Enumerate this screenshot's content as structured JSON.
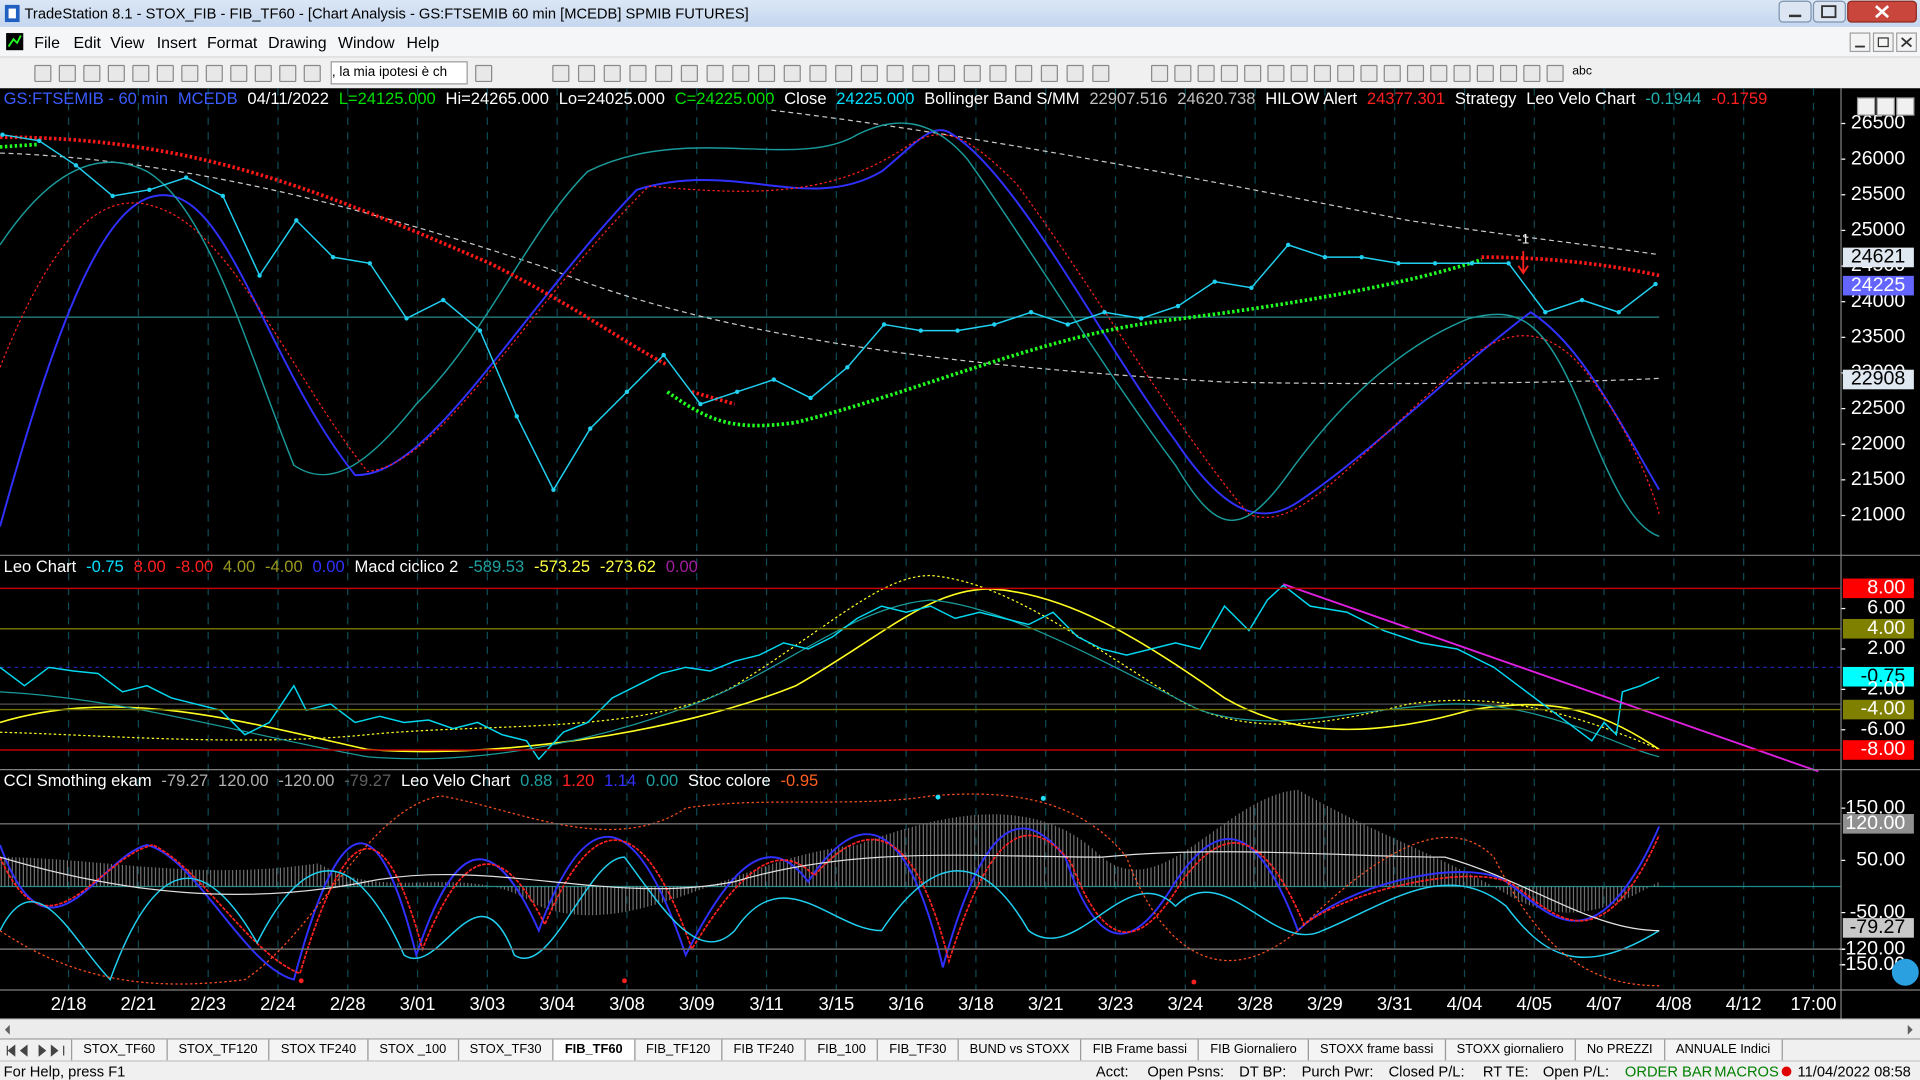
{
  "window": {
    "title": "TradeStation 8.1 - STOX_FIB - FIB_TF60 - [Chart Analysis - GS:FTSEMIB  60 min  [MCEDB] SPMIB FUTURES]"
  },
  "menu": [
    "File",
    "Edit",
    "View",
    "Insert",
    "Format",
    "Drawing",
    "Window",
    "Help"
  ],
  "toolbar": {
    "combo": ", la mia ipotesi è ch",
    "text_tool": "abc"
  },
  "price_panel": {
    "legend": [
      {
        "text": "GS:FTSEMIB - 60 min",
        "color": "#3a5cff"
      },
      {
        "text": "MCEDB",
        "color": "#3a5cff"
      },
      {
        "text": "04/11/2022",
        "color": "#ffffff"
      },
      {
        "text": "L=24125.000",
        "color": "#00e000"
      },
      {
        "text": "Hi=24265.000",
        "color": "#ffffff"
      },
      {
        "text": "Lo=24025.000",
        "color": "#ffffff"
      },
      {
        "text": "C=24225.000",
        "color": "#00e000"
      },
      {
        "text": "Close",
        "color": "#ffffff"
      },
      {
        "text": "24225.000",
        "color": "#00e0ff"
      },
      {
        "text": "Bollinger Band S/MM",
        "color": "#ffffff"
      },
      {
        "text": "22907.516",
        "color": "#c0c0c0"
      },
      {
        "text": "24620.738",
        "color": "#c0c0c0"
      },
      {
        "text": "HILOW Alert",
        "color": "#ffffff"
      },
      {
        "text": "24377.301",
        "color": "#ff2020"
      },
      {
        "text": "Strategy",
        "color": "#ffffff"
      },
      {
        "text": "Leo Velo Chart",
        "color": "#ffffff"
      },
      {
        "text": "-0.1944",
        "color": "#20b0b0"
      },
      {
        "text": "-0.1759",
        "color": "#ff2020"
      }
    ],
    "ylim": [
      20450,
      26996
    ],
    "yticks": [
      21000,
      21500,
      22000,
      22500,
      23000,
      23500,
      24000,
      24500,
      25000,
      25500,
      26000,
      26500
    ],
    "axis_labels": [
      {
        "value": 24621,
        "label": "24621",
        "bg": "#dfe8f0",
        "fg": "#000000"
      },
      {
        "value": 24225,
        "label": "24225",
        "bg": "#6464ff",
        "fg": "#ffffff"
      },
      {
        "value": 22908,
        "label": "22908",
        "bg": "#dfe8f0",
        "fg": "#000000"
      }
    ],
    "close_color": "#20d0f0",
    "close": [
      26343,
      26257,
      25913,
      25484,
      25570,
      25742,
      25484,
      24367,
      25141,
      24625,
      24539,
      23766,
      24023,
      23594,
      22392,
      21361,
      22220,
      22735,
      23251,
      22563,
      22735,
      22907,
      22649,
      23079,
      23680,
      23594,
      23594,
      23680,
      23852,
      23680,
      23852,
      23766,
      23938,
      24281,
      24195,
      24797,
      24625,
      24625,
      24539,
      24539,
      24539,
      24539,
      23852,
      24023,
      23852,
      24247
    ],
    "annotation": "-1"
  },
  "panel2": {
    "legend": [
      {
        "text": "Leo Chart",
        "color": "#ffffff"
      },
      {
        "text": "-0.75",
        "color": "#00e0ff"
      },
      {
        "text": "8.00",
        "color": "#ff2020"
      },
      {
        "text": "-8.00",
        "color": "#ff2020"
      },
      {
        "text": "4.00",
        "color": "#9a9a20"
      },
      {
        "text": "-4.00",
        "color": "#9a9a20"
      },
      {
        "text": "0.00",
        "color": "#3030ff"
      },
      {
        "text": "Macd ciclico 2",
        "color": "#ffffff"
      },
      {
        "text": "-589.53",
        "color": "#20a0a0"
      },
      {
        "text": "-573.25",
        "color": "#ffff40"
      },
      {
        "text": "-273.62",
        "color": "#ffff40"
      },
      {
        "text": "0.00",
        "color": "#a020a0"
      }
    ],
    "ylim": [
      -9.88,
      11.33
    ],
    "axis_labels": [
      {
        "value": 8,
        "label": "8.00",
        "bg": "#ff0000",
        "fg": "#ffffff",
        "line": "#c00000"
      },
      {
        "value": 6,
        "label": "6.00"
      },
      {
        "value": 4,
        "label": "4.00",
        "bg": "#808000",
        "fg": "#ffffff",
        "line": "#707000"
      },
      {
        "value": 2,
        "label": "2.00"
      },
      {
        "value": -0.75,
        "label": "-0.75",
        "bg": "#00ffff",
        "fg": "#000000"
      },
      {
        "value": -2,
        "label": "-2.00"
      },
      {
        "value": -4,
        "label": "-4.00",
        "bg": "#808000",
        "fg": "#ffffff",
        "line": "#707000"
      },
      {
        "value": -6,
        "label": "-6.00"
      },
      {
        "value": -8,
        "label": "-8.00",
        "bg": "#ff0000",
        "fg": "#ffffff",
        "line": "#c00000"
      }
    ]
  },
  "panel3": {
    "legend": [
      {
        "text": "CCI Smothing ekam",
        "color": "#ffffff"
      },
      {
        "text": "-79.27",
        "color": "#b0b0b0"
      },
      {
        "text": "120.00",
        "color": "#b0b0b0"
      },
      {
        "text": "-120.00",
        "color": "#b0b0b0"
      },
      {
        "text": "-79.27",
        "color": "#606060"
      },
      {
        "text": "Leo Velo Chart",
        "color": "#ffffff"
      },
      {
        "text": "0.88",
        "color": "#20a0a0"
      },
      {
        "text": "1.20",
        "color": "#ff2020"
      },
      {
        "text": "1.14",
        "color": "#3030ff"
      },
      {
        "text": "0.00",
        "color": "#20a0a0"
      },
      {
        "text": "Stoc colore",
        "color": "#ffffff"
      },
      {
        "text": "-0.95",
        "color": "#ff6020"
      }
    ],
    "ylim": [
      -197,
      225
    ],
    "axis_labels": [
      {
        "value": 150,
        "label": "150.00"
      },
      {
        "value": 120,
        "label": "120.00",
        "bg": "#909090",
        "fg": "#ffffff",
        "line": "#707070"
      },
      {
        "value": 50,
        "label": "50.00"
      },
      {
        "value": -50,
        "label": "-50.00"
      },
      {
        "value": -79.27,
        "label": "-79.27",
        "bg": "#c8c8c8",
        "fg": "#000000"
      },
      {
        "value": -120,
        "label": "-120.00",
        "line": "#707070"
      },
      {
        "value": -150,
        "label": "-150.00"
      }
    ]
  },
  "dates": [
    "2/18",
    "2/21",
    "2/23",
    "2/24",
    "2/28",
    "3/01",
    "3/03",
    "3/04",
    "3/08",
    "3/09",
    "3/11",
    "3/15",
    "3/16",
    "3/18",
    "3/21",
    "3/23",
    "3/24",
    "3/28",
    "3/29",
    "3/31",
    "4/04",
    "4/05",
    "4/07",
    "4/08",
    "4/12",
    "17:00"
  ],
  "tabs": [
    "STOX_TF60",
    "STOX_TF120",
    "STOX TF240",
    "STOX _100",
    "STOX_TF30",
    "FIB_TF60",
    "FIB_TF120",
    "FIB TF240",
    "FIB_100",
    "FIB_TF30",
    "BUND vs STOXX",
    "FIB Frame bassi",
    "FIB Giornaliero",
    "STOXX frame bassi",
    "STOXX giornaliero",
    "No PREZZI",
    "ANNUALE Indici"
  ],
  "active_tab": "FIB_TF60",
  "status": {
    "help": "For Help, press F1",
    "fields": [
      "Acct:",
      "Open Psns:",
      "DT BP:",
      "Purch Pwr:",
      "Closed P/L:",
      "RT TE:",
      "Open P/L:"
    ],
    "order_bar": "ORDER BAR",
    "macros": "MACROS",
    "datetime": "11/04/2022 08:58"
  }
}
